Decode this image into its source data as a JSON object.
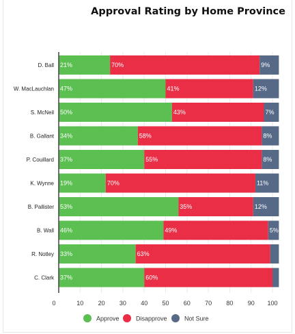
{
  "title": "Approval Rating by Home Province",
  "colors": {
    "approve": "#5cbf52",
    "disapprove": "#ea2e46",
    "not_sure": "#566a87"
  },
  "chart_data": {
    "type": "bar",
    "orientation": "horizontal",
    "stacked": true,
    "title": "Approval Rating by Home Province",
    "categories": [
      "D. Ball",
      "W. MacLauchlan",
      "S. McNeil",
      "B. Gallant",
      "P. Couillard",
      "K. Wynne",
      "B. Pallister",
      "B. Wall",
      "R. Notley",
      "C. Clark"
    ],
    "series": [
      {
        "name": "Approve",
        "color": "#5cbf52",
        "values": [
          21,
          47,
          50,
          34,
          37,
          19,
          53,
          46,
          33,
          37
        ],
        "display_ends": [
          24,
          50,
          53,
          37,
          40,
          22,
          56,
          49,
          36,
          40
        ],
        "labels": [
          "21%",
          "47%",
          "50%",
          "34%",
          "37%",
          "19%",
          "53%",
          "46%",
          "33%",
          "37%"
        ]
      },
      {
        "name": "Disapprove",
        "color": "#ea2e46",
        "values": [
          70,
          41,
          43,
          58,
          55,
          70,
          35,
          49,
          63,
          60
        ],
        "display_ends": [
          94,
          91,
          96,
          95,
          95,
          92,
          91,
          98,
          99,
          100
        ],
        "labels": [
          "70%",
          "41%",
          "43%",
          "58%",
          "55%",
          "70%",
          "35%",
          "49%",
          "63%",
          "60%"
        ]
      },
      {
        "name": "Not Sure",
        "color": "#566a87",
        "values": [
          9,
          12,
          7,
          8,
          8,
          11,
          12,
          5,
          4,
          3
        ],
        "display_ends": [
          103,
          103,
          103,
          103,
          103,
          103,
          103,
          103,
          103,
          103
        ],
        "labels": [
          "9%",
          "12%",
          "7%",
          "8%",
          "8%",
          "11%",
          "12%",
          "5%",
          "",
          ""
        ]
      }
    ],
    "xlim": [
      0,
      100
    ],
    "xticks": [
      "0",
      "10",
      "20",
      "30",
      "40",
      "50",
      "60",
      "70",
      "80",
      "90",
      "100"
    ],
    "grid": true,
    "legend_position": "bottom"
  }
}
